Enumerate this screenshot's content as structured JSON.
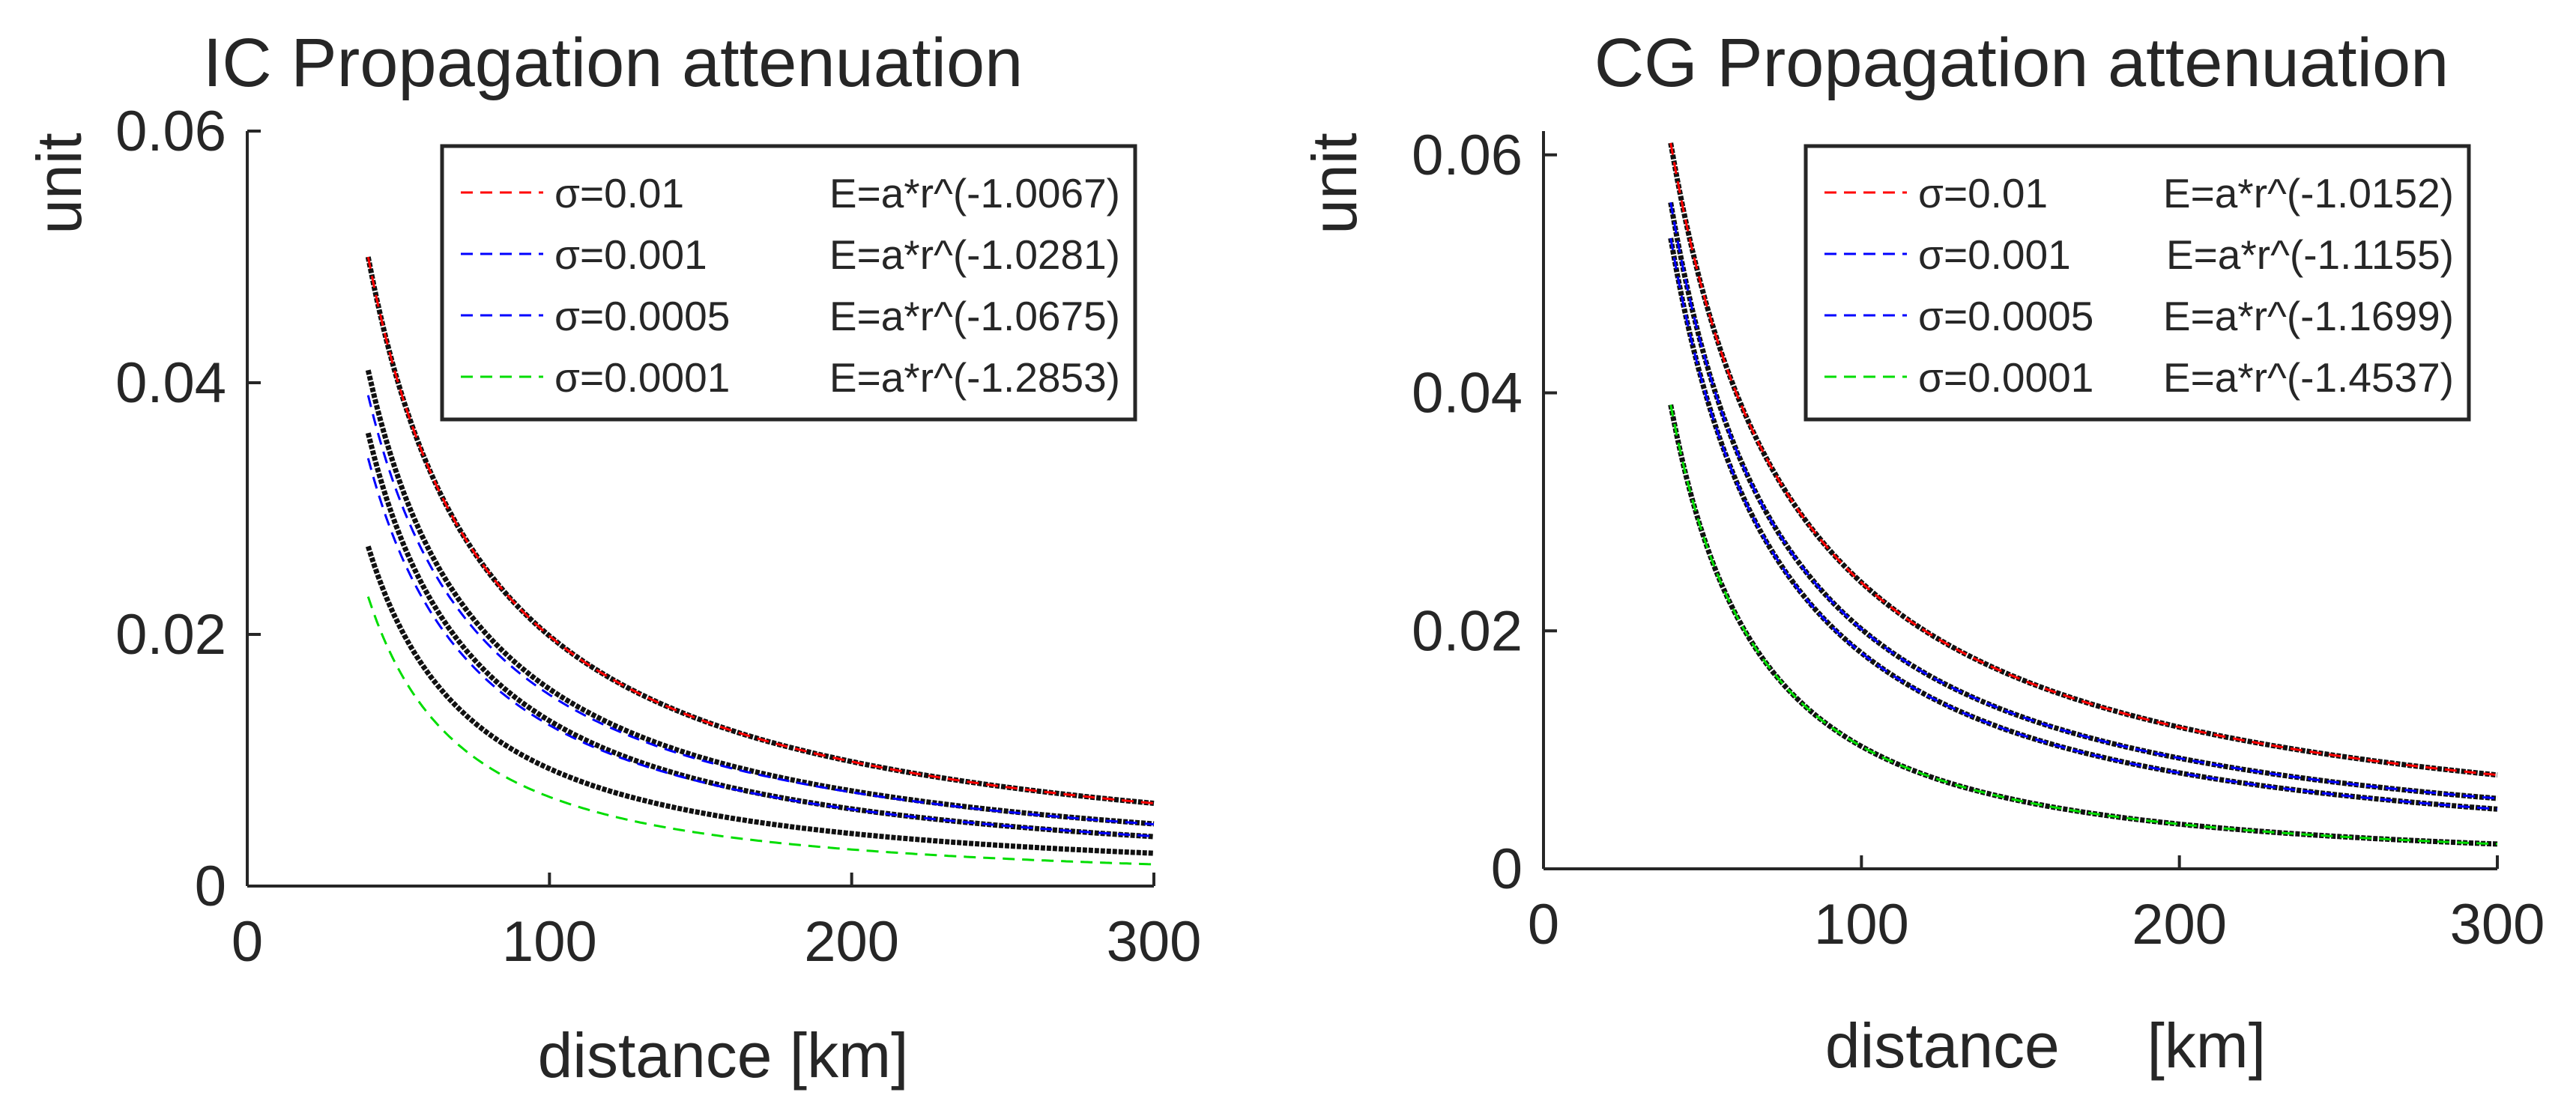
{
  "chart_data": [
    {
      "type": "line",
      "title": "IC Propagation attenuation",
      "xlabel": "distance [km]",
      "ylabel": "unit",
      "xlim": [
        0,
        300
      ],
      "ylim": [
        0,
        0.06
      ],
      "xticks": [
        0,
        100,
        200,
        300
      ],
      "xtick_labels": [
        "0",
        "100",
        "200",
        "300"
      ],
      "yticks": [
        0,
        0.02,
        0.04,
        0.06
      ],
      "ytick_labels": [
        "0",
        "0.02",
        "0.04",
        "0.06"
      ],
      "legend_position": "top-right",
      "x_start": 40,
      "x_end": 300,
      "series": [
        {
          "name": "σ=0.01",
          "fit_label": "E=a*r^(-1.0067)",
          "exponent": -1.0067,
          "color": "#ff0000",
          "y_at_start": 0.05
        },
        {
          "name": "σ=0.001",
          "fit_label": "E=a*r^(-1.0281)",
          "exponent": -1.0281,
          "color": "#0000ff",
          "y_at_start": 0.039
        },
        {
          "name": "σ=0.0005",
          "fit_label": "E=a*r^(-1.0675)",
          "exponent": -1.0675,
          "color": "#0000ff",
          "y_at_start": 0.034
        },
        {
          "name": "σ=0.0001",
          "fit_label": "E=a*r^(-1.2853)",
          "exponent": -1.2853,
          "color": "#00dd00",
          "y_at_start": 0.023
        }
      ],
      "measured": [
        {
          "y_at_start": 0.05,
          "exponent": -1.0067
        },
        {
          "y_at_start": 0.041,
          "exponent": -1.05
        },
        {
          "y_at_start": 0.036,
          "exponent": -1.1
        },
        {
          "y_at_start": 0.027,
          "exponent": -1.16
        }
      ]
    },
    {
      "type": "line",
      "title": "CG Propagation attenuation",
      "xlabel": "distance     [km]",
      "ylabel": "unit",
      "xlim": [
        0,
        300
      ],
      "ylim": [
        0,
        0.062
      ],
      "xticks": [
        0,
        100,
        200,
        300
      ],
      "xtick_labels": [
        "0",
        "100",
        "200",
        "300"
      ],
      "yticks": [
        0,
        0.02,
        0.04,
        0.06
      ],
      "ytick_labels": [
        "0",
        "0.02",
        "0.04",
        "0.06"
      ],
      "legend_position": "top-right",
      "x_start": 40,
      "x_end": 300,
      "series": [
        {
          "name": "σ=0.01",
          "fit_label": "E=a*r^(-1.0152)",
          "exponent": -1.0152,
          "color": "#ff0000",
          "y_at_start": 0.061
        },
        {
          "name": "σ=0.001",
          "fit_label": "E=a*r^(-1.1155)",
          "exponent": -1.1155,
          "color": "#0000ff",
          "y_at_start": 0.056
        },
        {
          "name": "σ=0.0005",
          "fit_label": "E=a*r^(-1.1699)",
          "exponent": -1.1699,
          "color": "#0000ff",
          "y_at_start": 0.053
        },
        {
          "name": "σ=0.0001",
          "fit_label": "E=a*r^(-1.4537)",
          "exponent": -1.4537,
          "color": "#00dd00",
          "y_at_start": 0.039
        }
      ],
      "measured": [
        {
          "y_at_start": 0.061,
          "exponent": -1.0152
        },
        {
          "y_at_start": 0.056,
          "exponent": -1.1155
        },
        {
          "y_at_start": 0.053,
          "exponent": -1.1699
        },
        {
          "y_at_start": 0.039,
          "exponent": -1.4537
        }
      ]
    }
  ]
}
